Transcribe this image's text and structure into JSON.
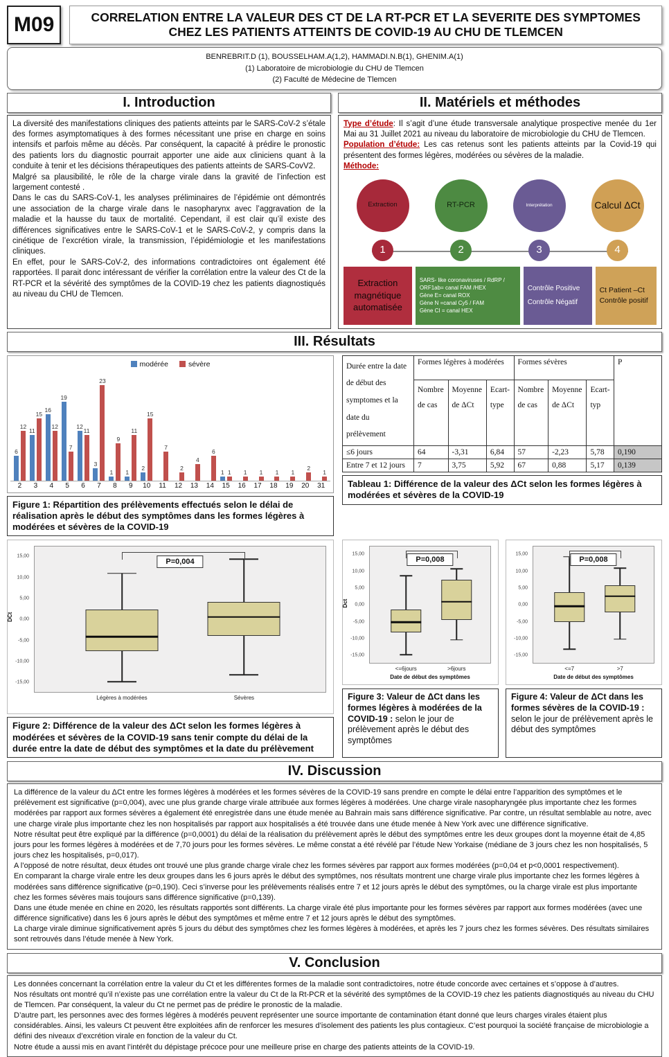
{
  "poster": {
    "code": "M09",
    "title": "CORRELATION ENTRE LA VALEUR DES CT DE LA RT-PCR ET LA SEVERITE DES SYMPTOMES CHEZ LES PATIENTS ATTEINTS DE COVID-19 AU CHU DE TLEMCEN",
    "authors": "BENREBRIT.D (1), BOUSSELHAM.A(1,2), HAMMADI.N.B(1), GHENIM.A(1)",
    "affil1": "(1) Laboratoire de microbiologie du CHU de Tlemcen",
    "affil2": "(2) Faculté de Médecine de Tlemcen"
  },
  "sections": {
    "intro_title": "I. Introduction",
    "methods_title": "II. Matériels et méthodes",
    "results_title": "III. Résultats",
    "discussion_title": "IV. Discussion",
    "conclusion_title": "V. Conclusion"
  },
  "introduction": {
    "paragraphs": [
      "La diversité des manifestations cliniques des patients atteints par le SARS-CoV-2 s’étale des formes asymptomatiques à des formes nécessitant une prise en charge en soins intensifs et parfois même au décès. Par conséquent, la capacité à prédire le pronostic des patients lors du diagnostic pourrait apporter une aide aux cliniciens quant à la conduite à tenir et les décisions thérapeutiques des patients atteints de SARS-CovV2.",
      "Malgré sa plausibilité, le rôle de la charge virale dans la gravité de l’infection est largement contesté .",
      "Dans le cas du SARS-CoV-1, les analyses préliminaires de l’épidémie ont démontrés une association de la charge virale dans le nasopharynx avec l’aggravation de la maladie et la hausse du taux de mortalité. Cependant, il est clair qu’il existe des différences significatives entre le SARS-CoV-1 et le SARS-CoV-2, y compris dans la cinétique de l’excrétion virale, la transmission, l’épidémiologie et les manifestations cliniques.",
      "En effet, pour le SARS-CoV-2, des informations contradictoires ont également été rapportées. Il parait donc intéressant de vérifier la corrélation entre la valeur des Ct de la RT-PCR et la sévérité des symptômes de la COVID-19 chez les patients diagnostiqués au niveau du CHU de Tlemcen."
    ]
  },
  "methods": {
    "type_label": "Type d’étude",
    "type_text": ": Il s’agit d’une étude transversale analytique prospective menée du 1er Mai au 31 Juillet 2021 au niveau du laboratoire de microbiologie du CHU de Tlemcen.",
    "population_label": "Population d’étude:",
    "population_text": " Les cas retenus sont les patients atteints par la Covid-19 qui présentent des formes légères, modérées ou sévères de la maladie.",
    "methode_label": "Méthode:",
    "steps": [
      {
        "circle_label": "Extraction",
        "circle_font": 9.5,
        "number": "1",
        "color": "#a7293a",
        "box_color": "#b02e3e",
        "circle_text_color": "#201010",
        "box_text_color": "#140808",
        "box_font": 13,
        "box_lines": [
          "Extraction",
          "magnétique",
          "automatisée"
        ]
      },
      {
        "circle_label": "RT-PCR",
        "circle_font": 11,
        "number": "2",
        "color": "#4d8a42",
        "box_color": "#4e8b42",
        "circle_text_color": "#11240f",
        "box_text_color": "#ffffff",
        "box_font": 8,
        "box_lines": [
          "SARS- like coronaviruses / RdRP / ORF1ab= canal FAM /HEX",
          "Gène E= canal ROX",
          "Gène N =canal Cy5 / FAM",
          "Gène CI = canal HEX"
        ]
      },
      {
        "circle_label": "Interprétation",
        "circle_font": 6.5,
        "number": "3",
        "color": "#6a5b94",
        "box_color": "#6a5b94",
        "circle_text_color": "#ffffff",
        "box_text_color": "#ffffff",
        "box_font": 10,
        "box_lines": [
          "Contrôle Positive",
          "",
          "Contrôle Négatif"
        ]
      },
      {
        "circle_label": "Calcul ΔCt",
        "circle_font": 14,
        "number": "4",
        "color": "#d0a055",
        "box_color": "#cfa258",
        "circle_text_color": "#181008",
        "box_text_color": "#181008",
        "box_font": 10.5,
        "box_lines": [
          "Ct Patient –Ct",
          "Contrôle positif"
        ]
      }
    ]
  },
  "figure1": {
    "caption": "Figure 1: Répartition des prélèvements effectués selon le délai de réalisation après le début des symptômes dans les formes légères à modérées et sévères de la COVID-19"
  },
  "table1": {
    "caption": "Tableau 1: Différence de la valeur des ΔCt selon les formes légères à modérées et sévères de la COVID-19",
    "col1_header": "Durée entre la date de début des symptomes et la date du prélèvement",
    "group1": "Formes légères à modérées",
    "group2": "Formes sévères",
    "p_header": "P",
    "sub_headers": [
      "Nombre de cas",
      "Moyenne de ΔCt",
      "Ecart-type",
      "Nombre de cas",
      "Moyenne de ΔCt",
      "Ecart-typ"
    ],
    "rows": [
      {
        "label": "≤6 jours",
        "values": [
          "64",
          "-3,31",
          "6,84",
          "57",
          "-2,23",
          "5,78"
        ],
        "p": "0,190"
      },
      {
        "label": "Entre 7 et 12 jours",
        "values": [
          "7",
          "3,75",
          "5,92",
          "67",
          "0,88",
          "5,17"
        ],
        "p": "0,139"
      }
    ]
  },
  "figure2": {
    "caption": "Figure 2: Différence de la valeur des ΔCt selon les formes légères à modérées et sévères de la COVID-19 sans tenir compte du délai de la durée entre la date de début des symptômes et la date du prélèvement"
  },
  "figure3": {
    "caption_bold": "Figure 3: Valeur de ΔCt dans les formes légères à modérées de la COVID-19 :",
    "caption_rest": " selon le jour de prélèvement après le début des symptômes"
  },
  "figure4": {
    "caption_bold": "Figure 4: Valeur de ΔCt dans les formes sévères de la COVID-19 :",
    "caption_rest": " selon le jour de prélèvement après le début des symptômes"
  },
  "discussion": {
    "paragraphs": [
      "La différence de la valeur du ΔCt entre les formes légères à modérées et les formes sévères de la COVID-19 sans prendre en compte le délai entre l’apparition des symptômes et le prélèvement est significative (p=0,004), avec une plus grande charge virale attribuée aux formes légères à modérées. Une charge virale nasopharyngée plus importante chez les formes modérées par rapport aux formes sévères a également été enregistrée dans une étude menée au Bahrain mais sans différence significative. Par contre, un résultat semblable au notre, avec une charge virale plus importante chez les non hospitalisés par rapport aux hospitalisés a été trouvée dans une étude menée à New York avec une différence significative.",
      "Notre résultat peut être expliqué par la différence (p=0,0001) du délai de la réalisation du prélèvement après le début des symptômes entre les deux groupes dont la moyenne était de 4,85 jours pour les formes légères à modérées et de 7,70 jours pour les formes sévères. Le même constat a été révélé par l’étude New Yorkaise (médiane de 3 jours chez les non hospitalisés, 5 jours chez les hospitalisés, p=0,017).",
      "A l’opposé de notre résultat, deux études ont trouvé une plus grande charge virale chez les formes sévères par rapport aux formes modérées (p=0,04 et p<0,0001 respectivement).",
      "En comparant la charge virale entre les deux groupes dans les 6 jours après le début des symptômes, nos résultats montrent une charge virale plus importante chez les formes légères à modérées sans différence significative (p=0,190). Ceci s’inverse pour les prélèvements réalisés entre 7 et 12 jours après le début des symptômes, ou la charge virale est plus importante chez les formes sévères mais toujours sans différence significative (p=0,139).",
      "Dans une étude menée en chine en 2020, les résultats rapportés sont différents. La charge virale été plus importante pour les formes sévères par rapport aux formes modérées (avec une différence significative) dans les 6 jours après le début des symptômes et même entre 7 et 12 jours après le début des symptômes.",
      "La charge virale diminue significativement après 5 jours du début des symptômes chez les formes légères à modérées, et après les 7 jours chez les formes sévères. Des résultats similaires sont retrouvés dans l’étude menée à New York."
    ]
  },
  "conclusion": {
    "paragraphs": [
      "Les données concernant la corrélation entre la valeur du Ct et les différentes formes de la maladie sont contradictoires, notre étude concorde avec certaines et s’oppose à d’autres.",
      "Nos résultats ont montré qu’il n’existe pas une corrélation entre la valeur du Ct de la Rt-PCR et la sévérité des symptômes de la COVID-19 chez les patients diagnostiqués au niveau du CHU de Tlemcen. Par conséquent, la valeur du Ct ne permet pas de prédire le pronostic de la maladie.",
      "D’autre part, les personnes avec des formes légères à modérés peuvent représenter une source importante de contamination étant donné que leurs charges virales étaient plus considérables. Ainsi, les valeurs Ct peuvent être exploitées afin de renforcer les mesures d’isolement des patients les plus contagieux. C’est pourquoi la société française de microbiologie a défini des niveaux d’excrétion virale en fonction de la valeur du Ct.",
      "Notre étude a aussi mis en avant l’intérêt du dépistage précoce pour une meilleure prise en charge des patients atteints de la COVID-19."
    ]
  },
  "chart_data": [
    {
      "id": "figure1",
      "type": "bar",
      "title": "",
      "xlabel": "",
      "ylabel": "",
      "ylim": [
        0,
        25
      ],
      "grid": false,
      "legend_position": "top",
      "value_labels": true,
      "categories": [
        "2",
        "3",
        "4",
        "5",
        "6",
        "7",
        "8",
        "9",
        "10",
        "11",
        "12",
        "13",
        "14",
        "15",
        "16",
        "17",
        "18",
        "19",
        "20",
        "31"
      ],
      "series": [
        {
          "name": "modérée",
          "color": "#4f81bd",
          "values": [
            6,
            11,
            16,
            19,
            12,
            3,
            1,
            1,
            2,
            0,
            0,
            0,
            0,
            1,
            0,
            0,
            0,
            0,
            0,
            0
          ]
        },
        {
          "name": "sévère",
          "color": "#c0504d",
          "values": [
            12,
            15,
            12,
            7,
            11,
            23,
            9,
            11,
            15,
            7,
            2,
            4,
            6,
            1,
            1,
            1,
            1,
            1,
            2,
            1
          ]
        }
      ]
    },
    {
      "id": "figure2",
      "type": "boxplot",
      "p_label": "P=0,004",
      "ylabel": "DCt",
      "xlabel": "",
      "ylim": [
        -17.5,
        17.5
      ],
      "yticks": [
        15,
        10,
        5,
        0,
        -5,
        -10,
        -15
      ],
      "ytick_labels": [
        "15,00",
        "10,00",
        "5,00",
        "0,00",
        "-5,00",
        "-10,00",
        "-15,00"
      ],
      "categories": [
        "Légères à modérées",
        "Sévères"
      ],
      "boxes": [
        {
          "min": -15.0,
          "q1": -7.6,
          "median": -4.2,
          "q3": 2.3,
          "max": 11.1
        },
        {
          "min": -13.3,
          "q1": -3.9,
          "median": 0.6,
          "q3": 4.2,
          "max": 14.5
        }
      ],
      "box_fill": "#d9d29b"
    },
    {
      "id": "figure3",
      "type": "boxplot",
      "p_label": "P=0,008",
      "ylabel": "Dct",
      "xlabel": "Date de début des symptômes",
      "ylim": [
        -17.5,
        17.5
      ],
      "yticks": [
        15,
        10,
        5,
        0,
        -5,
        -10,
        -15
      ],
      "ytick_labels": [
        "15,00",
        "10,00",
        "5,00",
        "0,00",
        "-5,00",
        "-10,00",
        "-15,00"
      ],
      "categories": [
        "<=6jours",
        ">6jours"
      ],
      "boxes": [
        {
          "min": -15.0,
          "q1": -8.2,
          "median": -5.2,
          "q3": -1.3,
          "max": 8.8
        },
        {
          "min": -10.5,
          "q1": -4.6,
          "median": 0.9,
          "q3": 7.5,
          "max": 10.8
        }
      ],
      "box_fill": "#d9d29b"
    },
    {
      "id": "figure4",
      "type": "boxplot",
      "p_label": "P=0,008",
      "ylabel": "",
      "xlabel": "Date de début des symptômes",
      "ylim": [
        -17.5,
        17.5
      ],
      "yticks": [
        15,
        10,
        5,
        0,
        -5,
        -10,
        -15
      ],
      "ytick_labels": [
        "15,00",
        "10,00",
        "5,00",
        "0,00",
        "-5,00",
        "-10,00",
        "-15,00"
      ],
      "categories": [
        "<=7",
        ">7"
      ],
      "boxes": [
        {
          "min": -13.3,
          "q1": -5.2,
          "median": -0.4,
          "q3": 3.8,
          "max": 14.5
        },
        {
          "min": -10.3,
          "q1": -2.3,
          "median": 2.6,
          "q3": 5.8,
          "max": 11.0
        }
      ],
      "box_fill": "#d9d29b"
    }
  ]
}
